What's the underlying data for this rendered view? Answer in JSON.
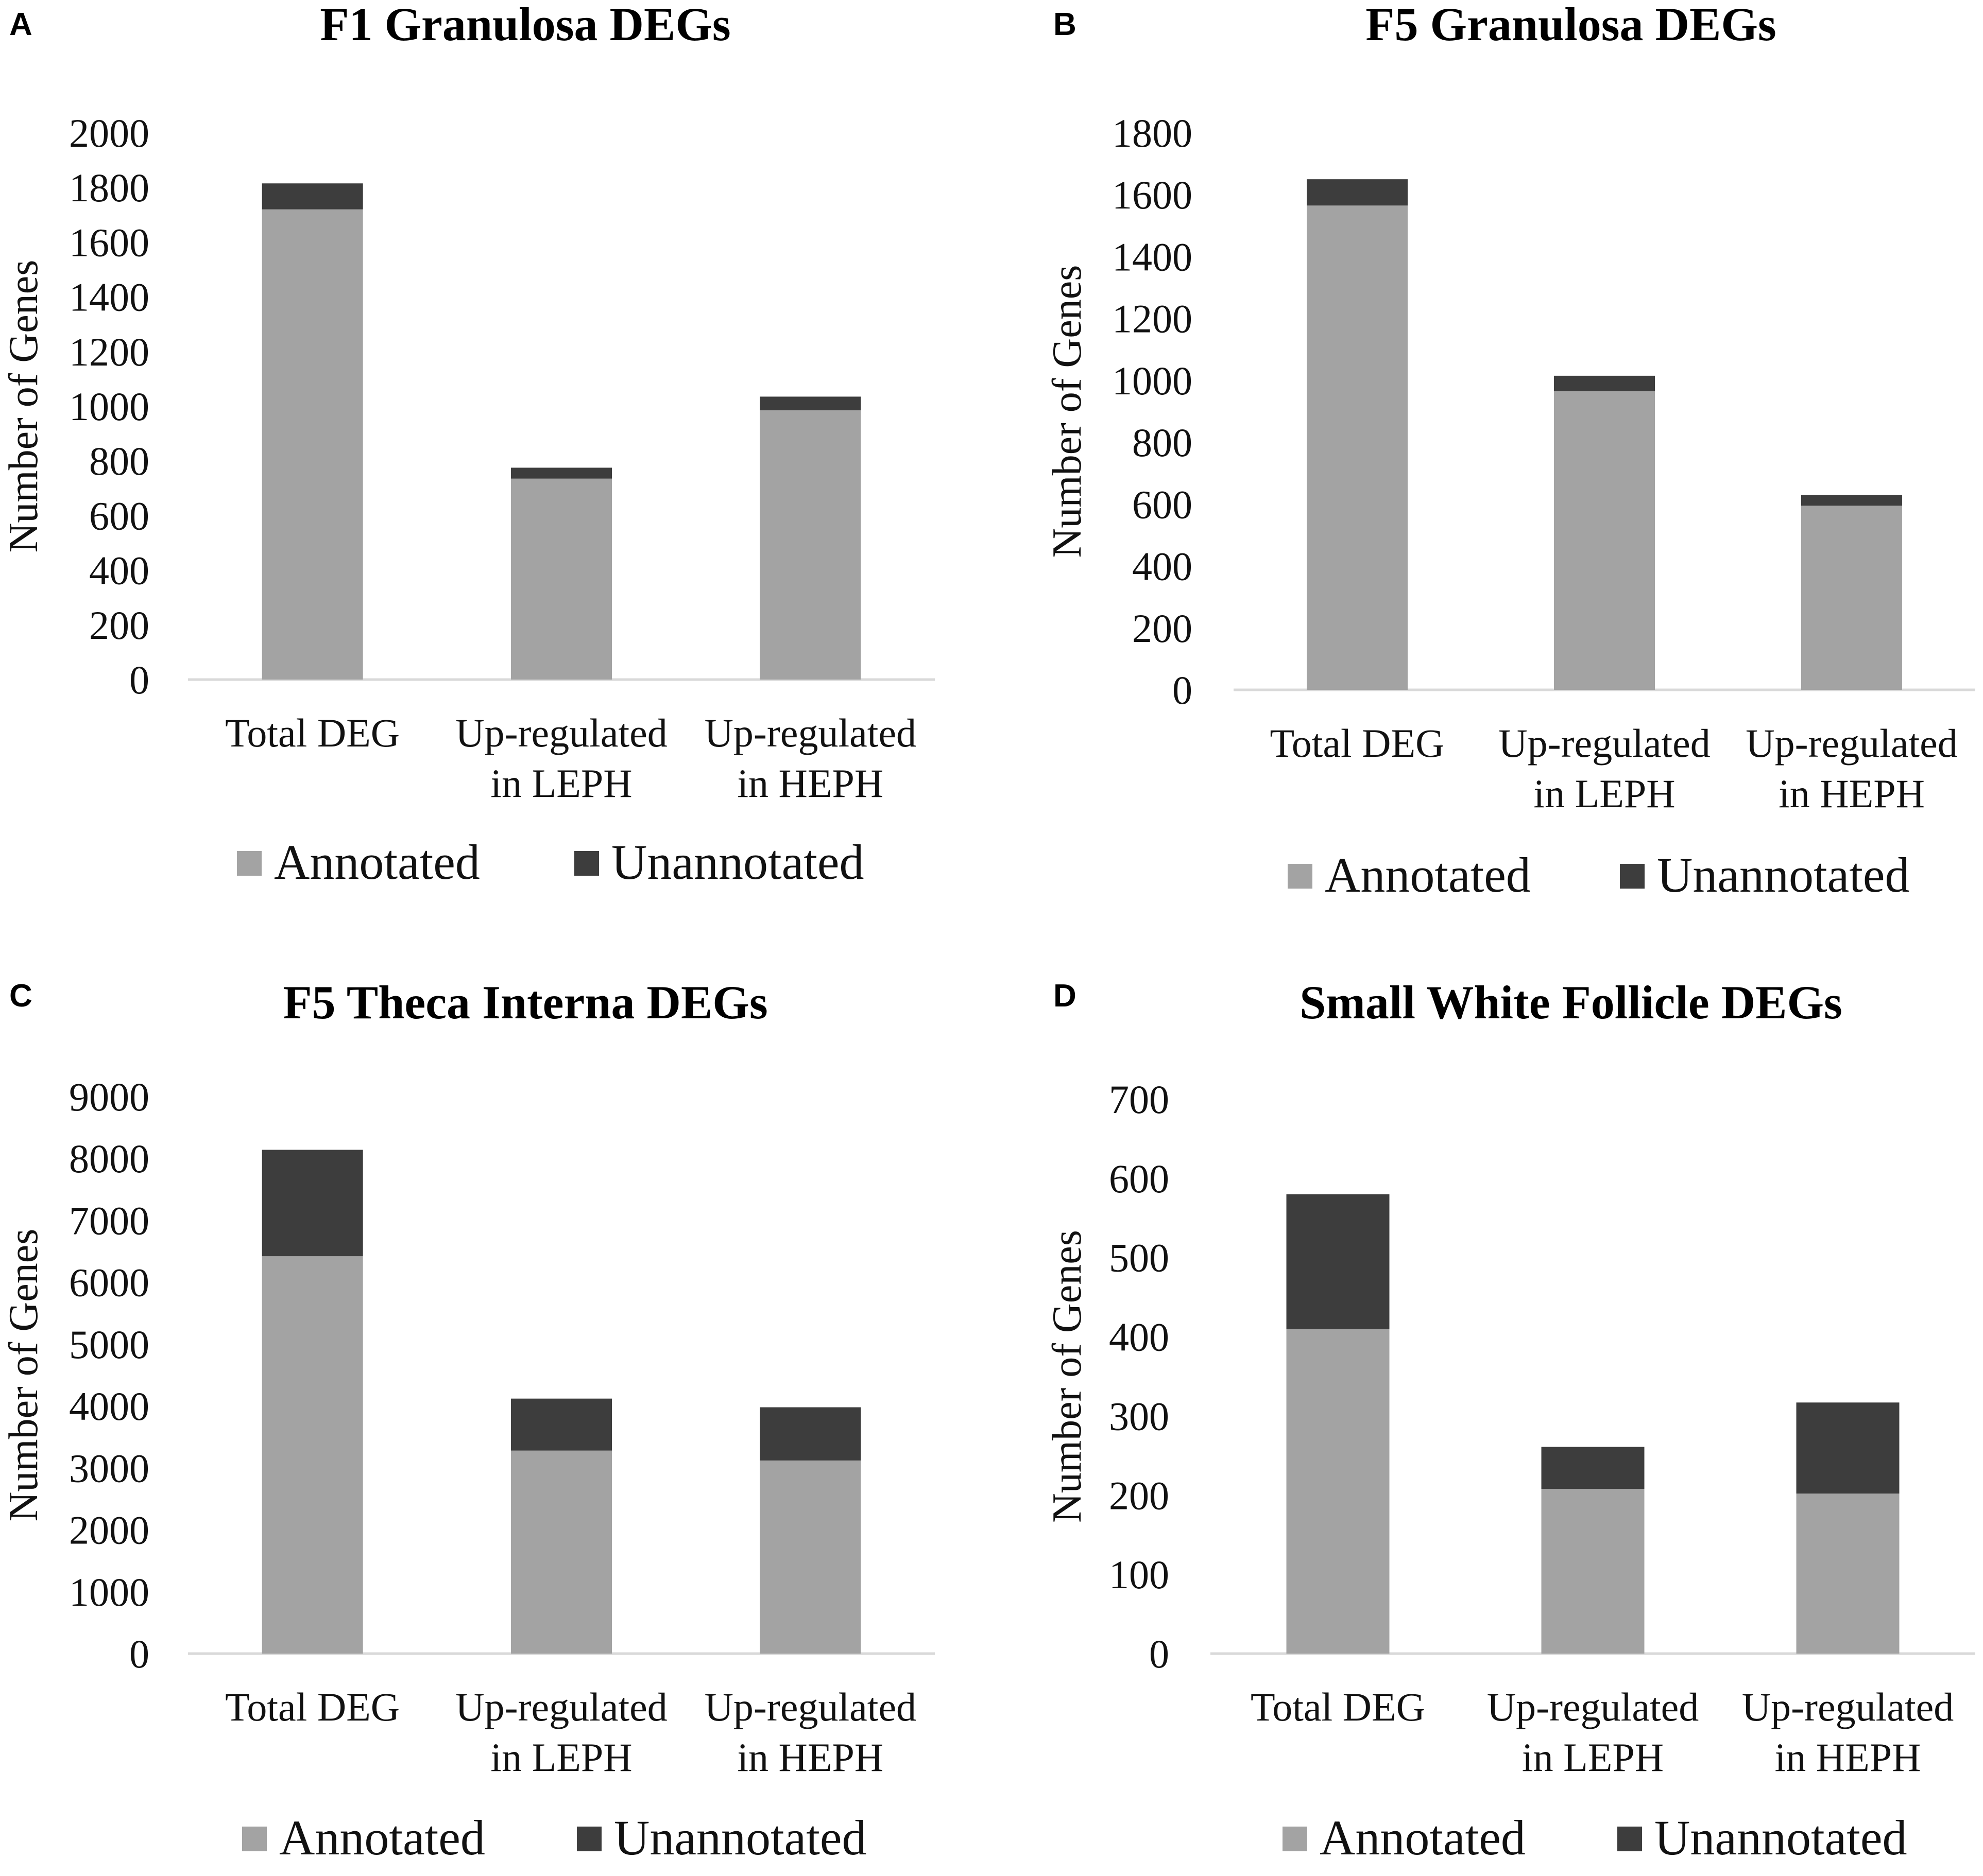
{
  "colors": {
    "annotated": "#a3a3a3",
    "unannotated": "#3d3d3d",
    "axis": "#d9d9d9",
    "text": "#111111"
  },
  "chart_data": [
    {
      "panel": "A",
      "type": "bar",
      "stacked": true,
      "title": "F1 Granulosa DEGs",
      "ylabel": "Number of Genes",
      "xlabel": "",
      "ylim": [
        0,
        2000
      ],
      "yticks": [
        0,
        200,
        400,
        600,
        800,
        1000,
        1200,
        1400,
        1600,
        1800,
        2000
      ],
      "categories": [
        [
          "Total DEG"
        ],
        [
          "Up-regulated",
          "in LEPH"
        ],
        [
          "Up-regulated",
          "in HEPH"
        ]
      ],
      "series": [
        {
          "name": "Annotated",
          "values": [
            1720,
            735,
            985
          ]
        },
        {
          "name": "Unannotated",
          "values": [
            95,
            40,
            50
          ]
        }
      ],
      "legend": "bottom",
      "grid": false
    },
    {
      "panel": "B",
      "type": "bar",
      "stacked": true,
      "title": "F5 Granulosa DEGs",
      "ylabel": "Number of Genes",
      "xlabel": "",
      "ylim": [
        0,
        1800
      ],
      "yticks": [
        0,
        200,
        400,
        600,
        800,
        1000,
        1200,
        1400,
        1600,
        1800
      ],
      "categories": [
        [
          "Total DEG"
        ],
        [
          "Up-regulated",
          "in LEPH"
        ],
        [
          "Up-regulated",
          "in HEPH"
        ]
      ],
      "series": [
        {
          "name": "Annotated",
          "values": [
            1565,
            965,
            595
          ]
        },
        {
          "name": "Unannotated",
          "values": [
            85,
            50,
            35
          ]
        }
      ],
      "legend": "bottom",
      "grid": false
    },
    {
      "panel": "C",
      "type": "bar",
      "stacked": true,
      "title": "F5 Theca Interna DEGs",
      "ylabel": "Number of Genes",
      "xlabel": "",
      "ylim": [
        0,
        9000
      ],
      "yticks": [
        0,
        1000,
        2000,
        3000,
        4000,
        5000,
        6000,
        7000,
        8000,
        9000
      ],
      "categories": [
        [
          "Total DEG"
        ],
        [
          "Up-regulated",
          "in LEPH"
        ],
        [
          "Up-regulated",
          "in HEPH"
        ]
      ],
      "series": [
        {
          "name": "Annotated",
          "values": [
            6420,
            3280,
            3120
          ]
        },
        {
          "name": "Unannotated",
          "values": [
            1720,
            840,
            860
          ]
        }
      ],
      "legend": "bottom",
      "grid": false
    },
    {
      "panel": "D",
      "type": "bar",
      "stacked": true,
      "title": "Small White Follicle DEGs",
      "ylabel": "Number of Genes",
      "xlabel": "",
      "ylim": [
        0,
        700
      ],
      "yticks": [
        0,
        100,
        200,
        300,
        400,
        500,
        600,
        700
      ],
      "categories": [
        [
          "Total DEG"
        ],
        [
          "Up-regulated",
          "in LEPH"
        ],
        [
          "Up-regulated",
          "in HEPH"
        ]
      ],
      "series": [
        {
          "name": "Annotated",
          "values": [
            410,
            208,
            202
          ]
        },
        {
          "name": "Unannotated",
          "values": [
            170,
            53,
            115
          ]
        }
      ],
      "legend": "bottom",
      "grid": false
    }
  ]
}
